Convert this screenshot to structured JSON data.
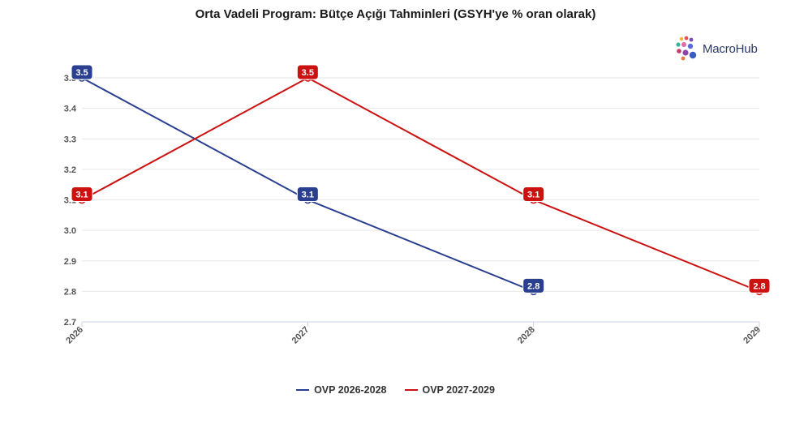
{
  "chart_data": {
    "type": "line",
    "title": "Orta Vadeli Program: Bütçe Açığı Tahminleri (GSYH'ye % oran olarak)",
    "xlabel": "",
    "ylabel": "",
    "x": [
      "2026",
      "2027",
      "2028",
      "2029"
    ],
    "ylim": [
      2.7,
      3.5
    ],
    "yticks": [
      "2.7",
      "2.8",
      "2.9",
      "3.0",
      "3.1",
      "3.2",
      "3.3",
      "3.4",
      "3.5"
    ],
    "grid": true,
    "legend_position": "bottom",
    "series": [
      {
        "name": "OVP 2026-2028",
        "color": "#2a3f8f",
        "values": [
          3.5,
          3.1,
          2.8,
          null
        ],
        "labels": [
          "3.5",
          "3.1",
          "2.8",
          null
        ]
      },
      {
        "name": "OVP 2027-2029",
        "color": "#cc1111",
        "values": [
          3.1,
          3.5,
          3.1,
          2.8
        ],
        "labels": [
          "3.1",
          "3.5",
          "3.1",
          "2.8"
        ]
      }
    ]
  },
  "logo": {
    "text": "MacroHub",
    "icon": "dots-cluster-icon"
  }
}
